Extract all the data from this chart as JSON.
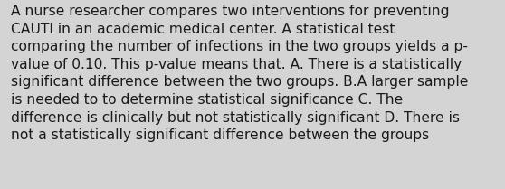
{
  "text": "A nurse researcher compares two interventions for preventing\nCAUTI in an academic medical center. A statistical test\ncomparing the number of infections in the two groups yields a p-\nvalue of 0.10. This p-value means that. A. There is a statistically\nsignificant difference between the two groups. B.A larger sample\nis needed to to determine statistical significance C. The\ndifference is clinically but not statistically significant D. There is\nnot a statistically significant difference between the groups",
  "background_color": "#d4d4d4",
  "text_color": "#1a1a1a",
  "font_size": 11.2,
  "fig_width": 5.58,
  "fig_height": 2.09,
  "dpi": 100
}
